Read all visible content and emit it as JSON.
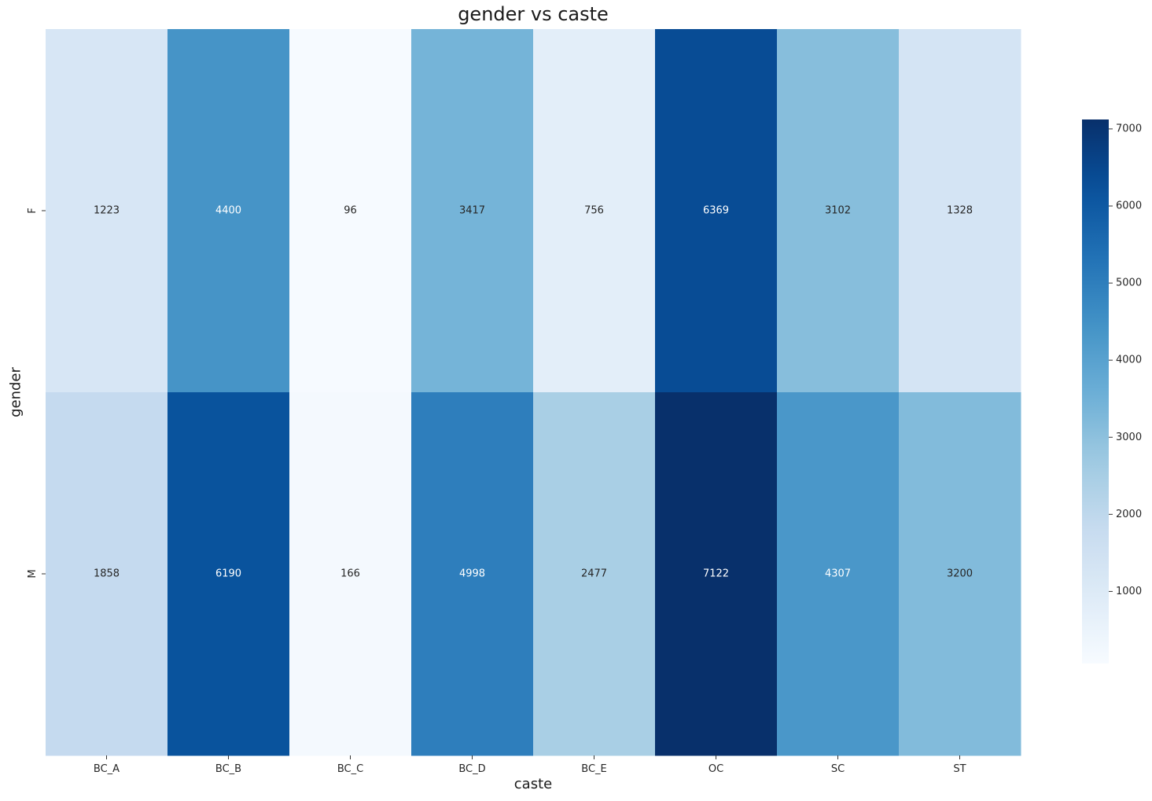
{
  "chart_data": {
    "type": "heatmap",
    "title": "gender vs caste",
    "xlabel": "caste",
    "ylabel": "gender",
    "x_categories": [
      "BC_A",
      "BC_B",
      "BC_C",
      "BC_D",
      "BC_E",
      "OC",
      "SC",
      "ST"
    ],
    "y_categories": [
      "F",
      "M"
    ],
    "values": [
      [
        1223,
        4400,
        96,
        3417,
        756,
        6369,
        3102,
        1328
      ],
      [
        1858,
        6190,
        166,
        4998,
        2477,
        7122,
        4307,
        3200
      ]
    ],
    "colormap": "Blues",
    "colorbar": {
      "range": [
        66,
        7122
      ],
      "ticks": [
        1000,
        2000,
        3000,
        4000,
        5000,
        6000,
        7000
      ]
    }
  }
}
